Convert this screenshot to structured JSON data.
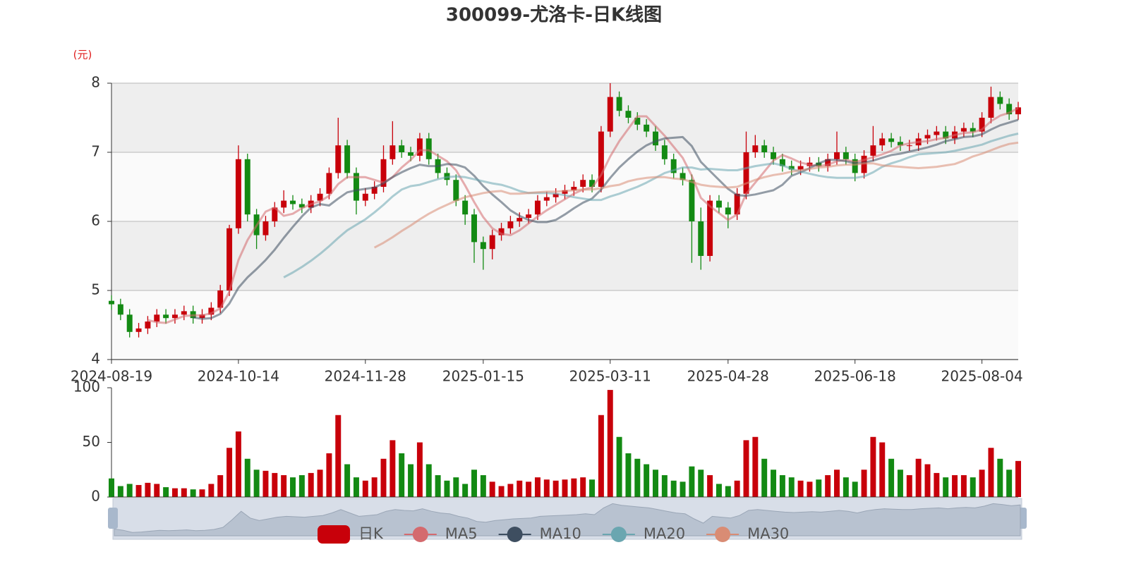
{
  "chart_data": {
    "type": "candlestick",
    "title": "300099-尤洛卡-日K线图",
    "y_unit": "(元)",
    "candle_name": "日K",
    "up_color": "#c8000a",
    "down_color": "#138a13",
    "categories": [
      "2024-08-19",
      null,
      null,
      null,
      null,
      null,
      null,
      null,
      null,
      null,
      null,
      null,
      null,
      null,
      "2024-10-14",
      null,
      null,
      null,
      null,
      null,
      null,
      null,
      null,
      null,
      null,
      null,
      null,
      null,
      "2024-11-28",
      null,
      null,
      null,
      null,
      null,
      null,
      null,
      null,
      null,
      null,
      null,
      null,
      "2025-01-15",
      null,
      null,
      null,
      null,
      null,
      null,
      null,
      null,
      null,
      null,
      null,
      null,
      null,
      "2025-03-11",
      null,
      null,
      null,
      null,
      null,
      null,
      null,
      null,
      null,
      null,
      null,
      null,
      "2025-04-28",
      null,
      null,
      null,
      null,
      null,
      null,
      null,
      null,
      null,
      null,
      null,
      null,
      null,
      "2025-06-18",
      null,
      null,
      null,
      null,
      null,
      null,
      null,
      null,
      null,
      null,
      null,
      null,
      null,
      "2025-08-04",
      null,
      null,
      null,
      null
    ],
    "open": [
      4.85,
      4.8,
      4.65,
      4.4,
      4.45,
      4.55,
      4.65,
      4.6,
      4.65,
      4.7,
      4.6,
      4.65,
      4.75,
      5.0,
      5.9,
      6.9,
      6.1,
      5.8,
      6.0,
      6.2,
      6.3,
      6.25,
      6.2,
      6.3,
      6.4,
      6.7,
      7.1,
      6.7,
      6.3,
      6.4,
      6.5,
      6.9,
      7.1,
      7.0,
      6.95,
      7.2,
      6.9,
      6.7,
      6.6,
      6.3,
      6.1,
      5.7,
      5.6,
      5.8,
      5.9,
      6.0,
      6.05,
      6.1,
      6.3,
      6.35,
      6.4,
      6.45,
      6.5,
      6.6,
      6.5,
      7.3,
      7.8,
      7.6,
      7.5,
      7.4,
      7.3,
      7.1,
      6.9,
      6.7,
      6.6,
      6.0,
      5.5,
      6.3,
      6.2,
      6.1,
      6.4,
      7.0,
      7.1,
      7.0,
      6.9,
      6.8,
      6.75,
      6.8,
      6.85,
      6.8,
      6.9,
      7.0,
      6.9,
      6.7,
      6.95,
      7.1,
      7.2,
      7.15,
      7.1,
      7.1,
      7.2,
      7.25,
      7.3,
      7.2,
      7.3,
      7.35,
      7.3,
      7.5,
      7.8,
      7.7,
      7.55
    ],
    "close": [
      4.8,
      4.65,
      4.4,
      4.45,
      4.55,
      4.65,
      4.6,
      4.65,
      4.7,
      4.6,
      4.65,
      4.75,
      5.0,
      5.9,
      6.9,
      6.1,
      5.8,
      6.0,
      6.2,
      6.3,
      6.25,
      6.2,
      6.3,
      6.4,
      6.7,
      7.1,
      6.7,
      6.3,
      6.4,
      6.5,
      6.9,
      7.1,
      7.0,
      6.95,
      7.2,
      6.9,
      6.7,
      6.6,
      6.3,
      6.1,
      5.7,
      5.6,
      5.8,
      5.9,
      6.0,
      6.05,
      6.1,
      6.3,
      6.35,
      6.4,
      6.45,
      6.5,
      6.6,
      6.5,
      7.3,
      7.8,
      7.6,
      7.5,
      7.4,
      7.3,
      7.1,
      6.9,
      6.7,
      6.6,
      6.0,
      5.5,
      6.3,
      6.2,
      6.1,
      6.4,
      7.0,
      7.1,
      7.0,
      6.9,
      6.8,
      6.75,
      6.8,
      6.85,
      6.8,
      6.9,
      7.0,
      6.9,
      6.7,
      6.95,
      7.1,
      7.2,
      7.15,
      7.1,
      7.1,
      7.2,
      7.25,
      7.3,
      7.2,
      7.3,
      7.35,
      7.3,
      7.5,
      7.8,
      7.7,
      7.55,
      7.65
    ],
    "low": [
      4.72,
      4.57,
      4.32,
      4.32,
      4.37,
      4.47,
      4.52,
      4.52,
      4.57,
      4.52,
      4.52,
      4.57,
      4.67,
      4.92,
      5.82,
      6.0,
      5.6,
      5.72,
      5.92,
      6.12,
      6.17,
      6.12,
      6.12,
      6.22,
      6.32,
      6.62,
      6.62,
      6.1,
      6.22,
      6.32,
      6.42,
      6.82,
      6.92,
      6.87,
      6.87,
      6.82,
      6.62,
      6.52,
      6.22,
      5.95,
      5.4,
      5.3,
      5.45,
      5.72,
      5.82,
      5.92,
      5.97,
      6.02,
      6.22,
      6.27,
      6.32,
      6.37,
      6.42,
      6.42,
      6.42,
      7.22,
      7.52,
      7.42,
      7.32,
      7.22,
      7.02,
      6.82,
      6.62,
      6.52,
      5.4,
      5.3,
      5.42,
      6.12,
      5.9,
      6.02,
      6.32,
      6.92,
      6.92,
      6.82,
      6.72,
      6.67,
      6.67,
      6.72,
      6.72,
      6.72,
      6.82,
      6.82,
      6.58,
      6.62,
      6.87,
      7.02,
      7.07,
      7.02,
      7.02,
      7.02,
      7.12,
      7.17,
      7.12,
      7.12,
      7.22,
      7.22,
      7.22,
      7.42,
      7.62,
      7.47,
      7.47
    ],
    "high": [
      4.93,
      4.88,
      4.73,
      4.53,
      4.63,
      4.73,
      4.73,
      4.73,
      4.78,
      4.78,
      4.73,
      4.83,
      5.08,
      5.95,
      7.1,
      6.98,
      6.18,
      6.08,
      6.28,
      6.45,
      6.38,
      6.33,
      6.38,
      6.48,
      6.78,
      7.5,
      7.18,
      6.78,
      6.48,
      6.58,
      7.1,
      7.45,
      7.18,
      7.08,
      7.28,
      7.28,
      6.98,
      6.78,
      6.68,
      6.38,
      6.18,
      5.78,
      5.88,
      5.98,
      6.08,
      6.13,
      6.18,
      6.38,
      6.43,
      6.48,
      6.53,
      6.58,
      6.68,
      6.68,
      7.38,
      8.0,
      7.88,
      7.68,
      7.58,
      7.48,
      7.38,
      7.18,
      6.98,
      6.78,
      6.68,
      6.2,
      6.38,
      6.38,
      6.28,
      6.48,
      7.3,
      7.25,
      7.18,
      7.08,
      6.98,
      6.88,
      6.88,
      6.93,
      6.93,
      6.98,
      7.3,
      7.08,
      6.98,
      7.03,
      7.38,
      7.28,
      7.28,
      7.23,
      7.18,
      7.28,
      7.33,
      7.38,
      7.38,
      7.38,
      7.43,
      7.43,
      7.58,
      7.95,
      7.88,
      7.78,
      7.73
    ],
    "ylim": [
      4,
      8
    ],
    "yticks": [
      4,
      5,
      6,
      7,
      8
    ],
    "series": [
      {
        "name": "MA5",
        "color": "#d46a6e",
        "values": [
          null,
          null,
          null,
          null,
          4.57,
          4.54,
          4.53,
          4.58,
          4.63,
          4.64,
          4.64,
          4.67,
          4.74,
          4.98,
          5.44,
          5.73,
          5.94,
          6.14,
          6.2,
          6.08,
          6.11,
          6.19,
          6.25,
          6.29,
          6.37,
          6.54,
          6.64,
          6.64,
          6.64,
          6.6,
          6.56,
          6.64,
          6.78,
          6.89,
          7.03,
          7.03,
          6.95,
          6.87,
          6.74,
          6.52,
          6.28,
          6.06,
          5.9,
          5.82,
          5.8,
          5.87,
          5.97,
          6.07,
          6.16,
          6.24,
          6.32,
          6.4,
          6.46,
          6.49,
          6.67,
          6.94,
          7.16,
          7.34,
          7.52,
          7.52,
          7.38,
          7.24,
          7.08,
          6.92,
          6.66,
          6.34,
          6.22,
          6.12,
          6.02,
          6.1,
          6.4,
          6.56,
          6.72,
          6.88,
          6.96,
          6.91,
          6.85,
          6.82,
          6.8,
          6.82,
          6.87,
          6.89,
          6.86,
          6.89,
          6.93,
          6.97,
          7.02,
          7.1,
          7.13,
          7.15,
          7.16,
          7.19,
          7.21,
          7.25,
          7.28,
          7.29,
          7.33,
          7.45,
          7.53,
          7.57,
          7.64
        ]
      },
      {
        "name": "MA10",
        "color": "#3e4e60",
        "values": [
          null,
          null,
          null,
          null,
          null,
          null,
          null,
          null,
          null,
          4.61,
          4.59,
          4.6,
          4.66,
          4.81,
          5.04,
          5.19,
          5.31,
          5.44,
          5.59,
          5.76,
          5.92,
          6.07,
          6.2,
          6.25,
          6.23,
          6.33,
          6.42,
          6.45,
          6.47,
          6.49,
          6.55,
          6.64,
          6.71,
          6.77,
          6.82,
          6.8,
          6.8,
          6.83,
          6.82,
          6.78,
          6.66,
          6.51,
          6.39,
          6.28,
          6.16,
          6.08,
          6.02,
          5.99,
          5.99,
          6.02,
          6.1,
          6.19,
          6.27,
          6.33,
          6.46,
          6.63,
          6.78,
          6.9,
          7.01,
          7.1,
          7.16,
          7.2,
          7.21,
          7.22,
          7.09,
          6.86,
          6.73,
          6.6,
          6.47,
          6.38,
          6.37,
          6.39,
          6.42,
          6.45,
          6.53,
          6.66,
          6.71,
          6.77,
          6.84,
          6.89,
          6.89,
          6.87,
          6.84,
          6.85,
          6.88,
          6.92,
          6.96,
          6.98,
          7.01,
          7.04,
          7.07,
          7.11,
          7.16,
          7.19,
          7.22,
          7.23,
          7.26,
          7.33,
          7.39,
          7.43,
          7.47
        ]
      },
      {
        "name": "MA20",
        "color": "#6aa6b0",
        "values": [
          null,
          null,
          null,
          null,
          null,
          null,
          null,
          null,
          null,
          null,
          null,
          null,
          null,
          null,
          null,
          null,
          null,
          null,
          null,
          5.19,
          5.26,
          5.34,
          5.43,
          5.53,
          5.64,
          5.76,
          5.87,
          5.95,
          6.03,
          6.13,
          6.24,
          6.36,
          6.46,
          6.51,
          6.53,
          6.57,
          6.61,
          6.64,
          6.65,
          6.64,
          6.61,
          6.58,
          6.55,
          6.53,
          6.49,
          6.44,
          6.41,
          6.41,
          6.41,
          6.4,
          6.38,
          6.35,
          6.33,
          6.31,
          6.31,
          6.36,
          6.4,
          6.45,
          6.5,
          6.56,
          6.63,
          6.7,
          6.74,
          6.78,
          6.78,
          6.75,
          6.76,
          6.75,
          6.74,
          6.74,
          6.77,
          6.8,
          6.82,
          6.84,
          6.81,
          6.76,
          6.72,
          6.69,
          6.66,
          6.64,
          6.63,
          6.63,
          6.63,
          6.65,
          6.71,
          6.79,
          6.84,
          6.88,
          6.93,
          6.97,
          6.98,
          6.99,
          7.0,
          7.02,
          7.05,
          7.08,
          7.11,
          7.16,
          7.2,
          7.24,
          7.27
        ]
      },
      {
        "name": "MA30",
        "color": "#d98c74",
        "values": [
          null,
          null,
          null,
          null,
          null,
          null,
          null,
          null,
          null,
          null,
          null,
          null,
          null,
          null,
          null,
          null,
          null,
          null,
          null,
          null,
          null,
          null,
          null,
          null,
          null,
          null,
          null,
          null,
          null,
          5.62,
          5.69,
          5.77,
          5.86,
          5.94,
          6.03,
          6.11,
          6.18,
          6.24,
          6.3,
          6.35,
          6.38,
          6.41,
          6.43,
          6.44,
          6.4,
          6.4,
          6.41,
          6.42,
          6.43,
          6.43,
          6.44,
          6.45,
          6.46,
          6.46,
          6.48,
          6.51,
          6.53,
          6.58,
          6.61,
          6.63,
          6.64,
          6.64,
          6.62,
          6.61,
          6.57,
          6.53,
          6.51,
          6.5,
          6.49,
          6.5,
          6.55,
          6.6,
          6.64,
          6.67,
          6.69,
          6.72,
          6.74,
          6.76,
          6.78,
          6.79,
          6.81,
          6.82,
          6.82,
          6.84,
          6.84,
          6.81,
          6.8,
          6.79,
          6.78,
          6.77,
          6.78,
          6.79,
          6.81,
          6.83,
          6.88,
          6.94,
          6.98,
          7.03,
          7.08,
          7.12,
          7.14
        ]
      }
    ],
    "volume": {
      "values": [
        17,
        10,
        12,
        11,
        13,
        12,
        9,
        8,
        8,
        7,
        7,
        12,
        20,
        45,
        60,
        35,
        25,
        24,
        22,
        20,
        18,
        20,
        22,
        25,
        40,
        75,
        30,
        18,
        15,
        18,
        35,
        52,
        40,
        30,
        50,
        30,
        20,
        15,
        18,
        12,
        25,
        20,
        14,
        10,
        12,
        15,
        14,
        18,
        16,
        15,
        16,
        17,
        18,
        16,
        75,
        98,
        55,
        40,
        35,
        30,
        25,
        20,
        15,
        14,
        28,
        25,
        20,
        12,
        10,
        15,
        52,
        55,
        35,
        25,
        20,
        18,
        15,
        14,
        16,
        20,
        25,
        18,
        14,
        25,
        55,
        50,
        35,
        25,
        20,
        35,
        30,
        22,
        18,
        20,
        20,
        18,
        25,
        45,
        35,
        25,
        33
      ],
      "ylim": [
        0,
        100
      ],
      "yticks": [
        0,
        50,
        100
      ]
    }
  }
}
